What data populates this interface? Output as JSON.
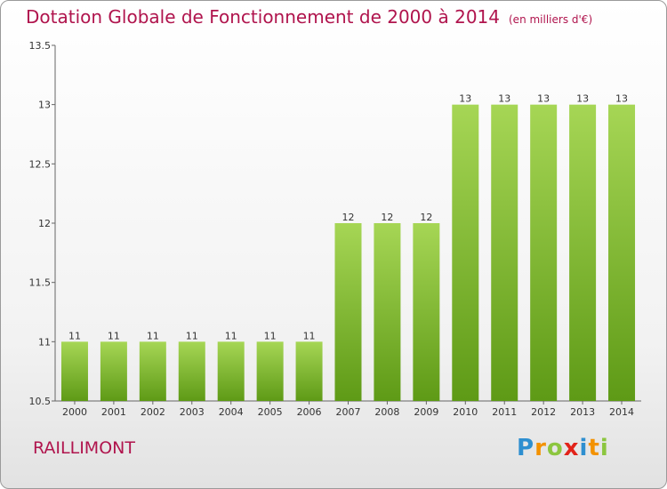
{
  "title": "Dotation Globale de Fonctionnement de 2000 à 2014",
  "unit": "(en milliers d'€)",
  "place": "RAILLIMONT",
  "logo": {
    "letters": [
      "P",
      "r",
      "o",
      "x",
      "i",
      "t",
      "i"
    ],
    "colors": [
      "#2e8fd0",
      "#f39200",
      "#8cc63f",
      "#e2231a",
      "#2e8fd0",
      "#f39200",
      "#8cc63f"
    ]
  },
  "colors": {
    "bar": "#8cc63f",
    "bar_dark": "#5e9a16",
    "title": "#b0144d"
  },
  "chart_data": {
    "type": "bar",
    "categories": [
      "2000",
      "2001",
      "2002",
      "2003",
      "2004",
      "2005",
      "2006",
      "2007",
      "2008",
      "2009",
      "2010",
      "2011",
      "2012",
      "2013",
      "2014"
    ],
    "values": [
      11,
      11,
      11,
      11,
      11,
      11,
      11,
      12,
      12,
      12,
      13,
      13,
      13,
      13,
      13
    ],
    "data_labels": [
      "11",
      "11",
      "11",
      "11",
      "11",
      "11",
      "11",
      "12",
      "12",
      "12",
      "13",
      "13",
      "13",
      "13",
      "13"
    ],
    "title": "Dotation Globale de Fonctionnement de 2000 à 2014",
    "xlabel": "",
    "ylabel": "",
    "ylim": [
      10.5,
      13.5
    ],
    "yticks": [
      10.5,
      11,
      11.5,
      12,
      12.5,
      13,
      13.5
    ],
    "ytick_labels": [
      "10.5",
      "11",
      "11.5",
      "12",
      "12.5",
      "13",
      "13.5"
    ],
    "grid": false
  }
}
